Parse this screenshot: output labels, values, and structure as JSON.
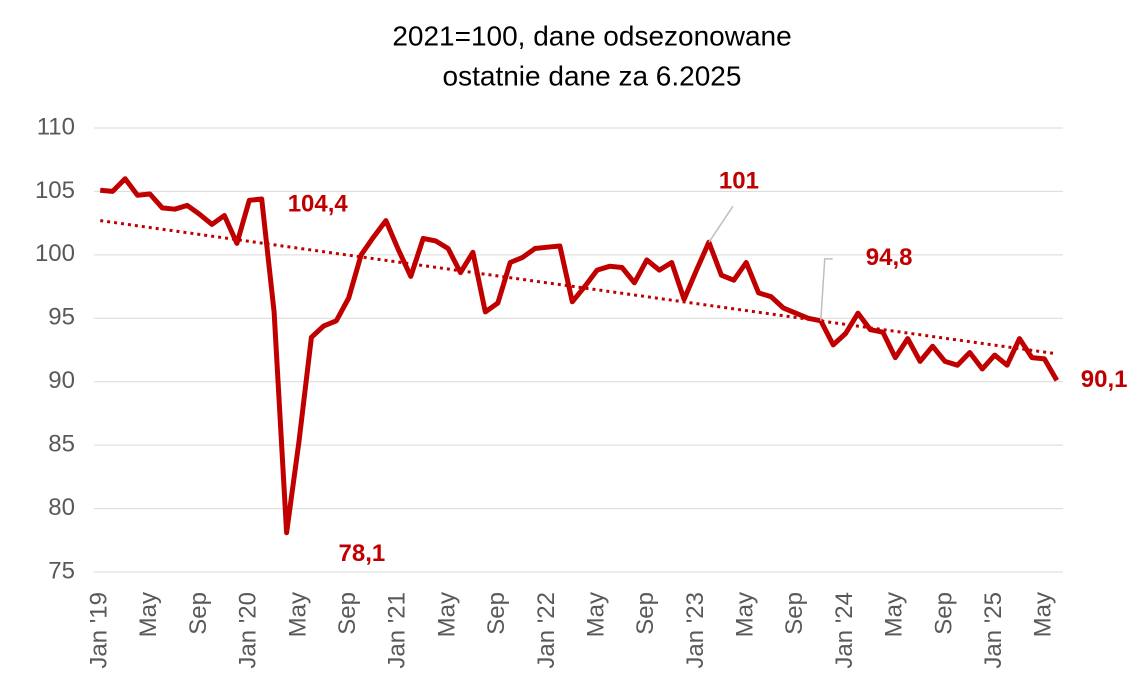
{
  "chart_data": {
    "type": "line",
    "title": "2021=100, dane odsezonowane",
    "subtitle": "ostatnie dane za 6.2025",
    "categories": [
      "Jan '19",
      null,
      null,
      null,
      "May",
      null,
      null,
      null,
      "Sep",
      null,
      null,
      null,
      "Jan '20",
      null,
      null,
      null,
      "May",
      null,
      null,
      null,
      "Sep",
      null,
      null,
      null,
      "Jan '21",
      null,
      null,
      null,
      "May",
      null,
      null,
      null,
      "Sep",
      null,
      null,
      null,
      "Jan '22",
      null,
      null,
      null,
      "May",
      null,
      null,
      null,
      "Sep",
      null,
      null,
      null,
      "Jan '23",
      null,
      null,
      null,
      "May",
      null,
      null,
      null,
      "Sep",
      null,
      null,
      null,
      "Jan '24",
      null,
      null,
      null,
      "May",
      null,
      null,
      null,
      "Sep",
      null,
      null,
      null,
      "Jan '25",
      null,
      null,
      null,
      "May",
      null
    ],
    "series": [
      {
        "color": "#c00000",
        "values": [
          105.1,
          105.0,
          106.0,
          104.7,
          104.8,
          103.7,
          103.6,
          103.9,
          103.2,
          102.4,
          103.1,
          100.9,
          104.3,
          104.4,
          95.5,
          78.1,
          85.3,
          93.5,
          94.4,
          94.8,
          96.6,
          100.0,
          101.4,
          102.7,
          100.4,
          98.3,
          101.3,
          101.1,
          100.5,
          98.6,
          100.2,
          95.5,
          96.2,
          99.4,
          99.8,
          100.5,
          100.6,
          100.7,
          96.3,
          97.5,
          98.8,
          99.1,
          99.0,
          97.8,
          99.6,
          98.8,
          99.4,
          96.5,
          98.8,
          101.0,
          98.4,
          98.0,
          99.4,
          97.0,
          96.7,
          95.8,
          95.4,
          95.0,
          94.8,
          92.9,
          93.8,
          95.4,
          94.1,
          93.9,
          91.9,
          93.4,
          91.6,
          92.8,
          91.6,
          91.3,
          92.3,
          91.0,
          92.1,
          91.3,
          93.4,
          91.9,
          91.8,
          90.1
        ],
        "value_labels": [
          null,
          null,
          null,
          null,
          null,
          null,
          null,
          null,
          null,
          null,
          null,
          null,
          null,
          "104,4",
          null,
          "78,1",
          null,
          null,
          null,
          null,
          null,
          null,
          null,
          null,
          null,
          null,
          null,
          null,
          null,
          null,
          null,
          null,
          null,
          null,
          null,
          null,
          null,
          null,
          null,
          null,
          null,
          null,
          null,
          null,
          null,
          null,
          null,
          null,
          null,
          "101",
          null,
          null,
          null,
          null,
          null,
          null,
          null,
          null,
          "94,8",
          null,
          null,
          null,
          null,
          null,
          null,
          null,
          null,
          null,
          null,
          null,
          null,
          null,
          null,
          null,
          null,
          null,
          null,
          "90,1"
        ]
      }
    ],
    "trendline": {
      "color": "#c00000",
      "values": [
        102.7,
        92.2
      ]
    },
    "ylim": [
      75,
      110
    ],
    "yticks": [
      75,
      80,
      85,
      90,
      95,
      100,
      105,
      110
    ],
    "grid": true
  }
}
